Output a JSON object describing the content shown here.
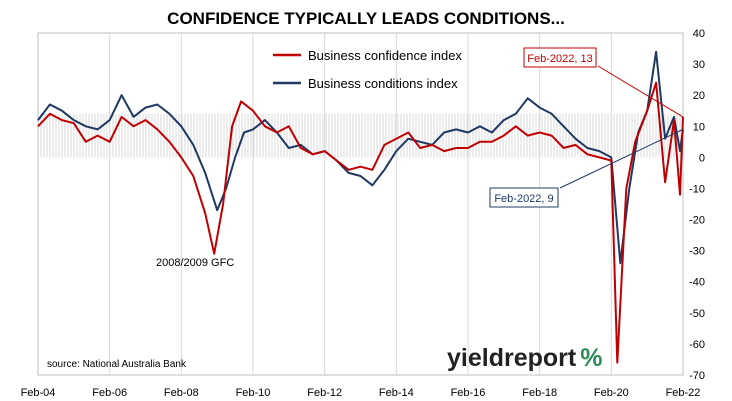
{
  "chart_data": {
    "type": "line",
    "title": "CONFIDENCE TYPICALLY LEADS CONDITIONS...",
    "ylim": [
      -70,
      40
    ],
    "y_ticks": [
      40,
      30,
      20,
      10,
      0,
      -10,
      -20,
      -30,
      -40,
      -50,
      -60,
      -70
    ],
    "x_ticks": [
      "Feb-04",
      "Feb-06",
      "Feb-08",
      "Feb-10",
      "Feb-12",
      "Feb-14",
      "Feb-16",
      "Feb-18",
      "Feb-20",
      "Feb-22"
    ],
    "x_range": [
      "2004-02",
      "2022-02"
    ],
    "y_axis_position": "right",
    "grid": "vertical",
    "legend_position": "top-center",
    "source": "source: National Australia Bank",
    "annotation_gfc": "2008/2009 GFC",
    "callout_confidence": "Feb-2022, 13",
    "callout_conditions": "Feb-2022, 9",
    "brand_word": "yieldreport",
    "brand_symbol": "%",
    "colors": {
      "confidence": "#c00000",
      "conditions": "#1f3864",
      "band": "#d9d9d9",
      "grid": "#d9d9d9",
      "brand_symbol": "#2e8b57"
    },
    "series": [
      {
        "name": "Business confidence index",
        "points": [
          [
            "2004-02",
            10
          ],
          [
            "2004-06",
            14
          ],
          [
            "2004-10",
            12
          ],
          [
            "2005-02",
            11
          ],
          [
            "2005-06",
            5
          ],
          [
            "2005-10",
            7
          ],
          [
            "2006-02",
            5
          ],
          [
            "2006-06",
            13
          ],
          [
            "2006-10",
            10
          ],
          [
            "2007-02",
            12
          ],
          [
            "2007-06",
            9
          ],
          [
            "2007-10",
            5
          ],
          [
            "2008-02",
            0
          ],
          [
            "2008-06",
            -6
          ],
          [
            "2008-10",
            -18
          ],
          [
            "2009-01",
            -31
          ],
          [
            "2009-04",
            -15
          ],
          [
            "2009-07",
            10
          ],
          [
            "2009-10",
            18
          ],
          [
            "2010-02",
            15
          ],
          [
            "2010-06",
            10
          ],
          [
            "2010-10",
            8
          ],
          [
            "2011-02",
            10
          ],
          [
            "2011-06",
            3
          ],
          [
            "2011-10",
            1
          ],
          [
            "2012-02",
            2
          ],
          [
            "2012-06",
            -1
          ],
          [
            "2012-10",
            -4
          ],
          [
            "2013-02",
            -3
          ],
          [
            "2013-06",
            -4
          ],
          [
            "2013-10",
            4
          ],
          [
            "2014-02",
            6
          ],
          [
            "2014-06",
            8
          ],
          [
            "2014-10",
            3
          ],
          [
            "2015-02",
            4
          ],
          [
            "2015-06",
            2
          ],
          [
            "2015-10",
            3
          ],
          [
            "2016-02",
            3
          ],
          [
            "2016-06",
            5
          ],
          [
            "2016-10",
            5
          ],
          [
            "2017-02",
            7
          ],
          [
            "2017-06",
            10
          ],
          [
            "2017-10",
            7
          ],
          [
            "2018-02",
            8
          ],
          [
            "2018-06",
            7
          ],
          [
            "2018-10",
            3
          ],
          [
            "2019-02",
            4
          ],
          [
            "2019-06",
            1
          ],
          [
            "2019-10",
            0
          ],
          [
            "2020-02",
            -1
          ],
          [
            "2020-04",
            -66
          ],
          [
            "2020-07",
            -10
          ],
          [
            "2020-10",
            5
          ],
          [
            "2021-02",
            15
          ],
          [
            "2021-05",
            24
          ],
          [
            "2021-08",
            -8
          ],
          [
            "2021-11",
            12
          ],
          [
            "2022-01",
            -12
          ],
          [
            "2022-02",
            13
          ]
        ]
      },
      {
        "name": "Business conditions index",
        "points": [
          [
            "2004-02",
            12
          ],
          [
            "2004-06",
            17
          ],
          [
            "2004-10",
            15
          ],
          [
            "2005-02",
            12
          ],
          [
            "2005-06",
            10
          ],
          [
            "2005-10",
            9
          ],
          [
            "2006-02",
            12
          ],
          [
            "2006-06",
            20
          ],
          [
            "2006-10",
            13
          ],
          [
            "2007-02",
            16
          ],
          [
            "2007-06",
            17
          ],
          [
            "2007-10",
            14
          ],
          [
            "2008-02",
            10
          ],
          [
            "2008-06",
            4
          ],
          [
            "2008-10",
            -5
          ],
          [
            "2009-02",
            -17
          ],
          [
            "2009-05",
            -10
          ],
          [
            "2009-08",
            0
          ],
          [
            "2009-11",
            8
          ],
          [
            "2010-02",
            9
          ],
          [
            "2010-06",
            12
          ],
          [
            "2010-10",
            8
          ],
          [
            "2011-02",
            3
          ],
          [
            "2011-06",
            4
          ],
          [
            "2011-10",
            1
          ],
          [
            "2012-02",
            2
          ],
          [
            "2012-06",
            -1
          ],
          [
            "2012-10",
            -5
          ],
          [
            "2013-02",
            -6
          ],
          [
            "2013-06",
            -9
          ],
          [
            "2013-10",
            -4
          ],
          [
            "2014-02",
            2
          ],
          [
            "2014-06",
            6
          ],
          [
            "2014-10",
            5
          ],
          [
            "2015-02",
            4
          ],
          [
            "2015-06",
            8
          ],
          [
            "2015-10",
            9
          ],
          [
            "2016-02",
            8
          ],
          [
            "2016-06",
            10
          ],
          [
            "2016-10",
            8
          ],
          [
            "2017-02",
            12
          ],
          [
            "2017-06",
            14
          ],
          [
            "2017-10",
            19
          ],
          [
            "2018-02",
            16
          ],
          [
            "2018-06",
            14
          ],
          [
            "2018-10",
            10
          ],
          [
            "2019-02",
            6
          ],
          [
            "2019-06",
            3
          ],
          [
            "2019-10",
            2
          ],
          [
            "2020-02",
            0
          ],
          [
            "2020-05",
            -34
          ],
          [
            "2020-08",
            -10
          ],
          [
            "2020-11",
            8
          ],
          [
            "2021-02",
            15
          ],
          [
            "2021-05",
            34
          ],
          [
            "2021-08",
            6
          ],
          [
            "2021-11",
            13
          ],
          [
            "2022-01",
            2
          ],
          [
            "2022-02",
            9
          ]
        ]
      }
    ]
  }
}
